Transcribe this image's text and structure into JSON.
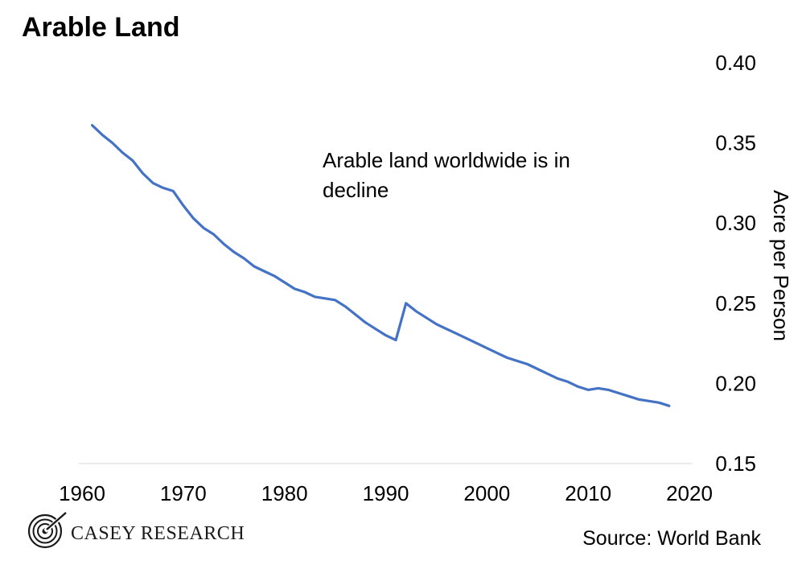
{
  "title": "Arable Land",
  "annotation": [
    "Arable land worldwide is in",
    "decline"
  ],
  "source": "Source: World Bank",
  "logo": {
    "name": "CASEY RESEARCH",
    "icon": "casey-research-spiral-logo"
  },
  "colors": {
    "line": "#4472c4",
    "axis_line": "#d9d9d9",
    "text": "#000000"
  },
  "chart_data": {
    "type": "line",
    "title": "Arable Land",
    "xlabel": "",
    "ylabel": "Acre per Person",
    "y_axis_position": "right",
    "xlim": [
      1960,
      2020
    ],
    "ylim": [
      0.15,
      0.4
    ],
    "x_ticks": [
      1960,
      1970,
      1980,
      1990,
      2000,
      2010,
      2020
    ],
    "y_ticks": [
      "0.15",
      "0.20",
      "0.25",
      "0.30",
      "0.35",
      "0.40"
    ],
    "grid": false,
    "legend": "none",
    "series": [
      {
        "x": [
          1961,
          1962,
          1963,
          1964,
          1965,
          1966,
          1967,
          1968,
          1969,
          1970,
          1971,
          1972,
          1973,
          1974,
          1975,
          1976,
          1977,
          1978,
          1979,
          1980,
          1981,
          1982,
          1983,
          1984,
          1985,
          1986,
          1987,
          1988,
          1989,
          1990,
          1991,
          1992,
          1993,
          1994,
          1995,
          1996,
          1997,
          1998,
          1999,
          2000,
          2001,
          2002,
          2003,
          2004,
          2005,
          2006,
          2007,
          2008,
          2009,
          2010,
          2011,
          2012,
          2013,
          2014,
          2015,
          2016,
          2017,
          2018
        ],
        "values": [
          0.361,
          0.355,
          0.35,
          0.344,
          0.339,
          0.331,
          0.325,
          0.322,
          0.32,
          0.311,
          0.303,
          0.297,
          0.293,
          0.287,
          0.282,
          0.278,
          0.273,
          0.27,
          0.267,
          0.263,
          0.259,
          0.257,
          0.254,
          0.253,
          0.252,
          0.248,
          0.243,
          0.238,
          0.234,
          0.23,
          0.227,
          0.25,
          0.245,
          0.241,
          0.237,
          0.234,
          0.231,
          0.228,
          0.225,
          0.222,
          0.219,
          0.216,
          0.214,
          0.212,
          0.209,
          0.206,
          0.203,
          0.201,
          0.198,
          0.196,
          0.197,
          0.196,
          0.194,
          0.192,
          0.19,
          0.189,
          0.188,
          0.186
        ]
      }
    ]
  }
}
